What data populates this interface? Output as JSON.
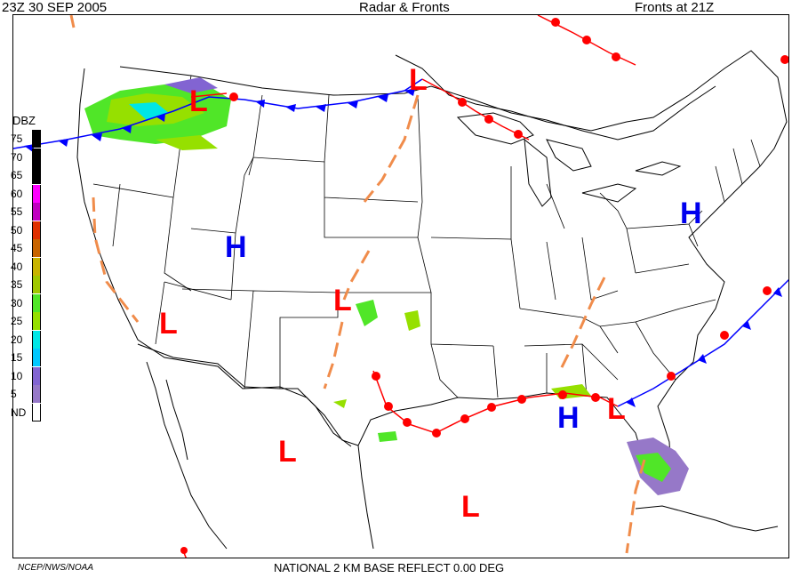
{
  "header": {
    "left": "23Z  30 SEP  2005",
    "center": "Radar & Fronts",
    "right": "Fronts at 21Z"
  },
  "legend": {
    "title": "DBZ",
    "items": [
      {
        "label": "75",
        "color": "#000000"
      },
      {
        "label": "70",
        "color": "#000000"
      },
      {
        "label": "65",
        "color": "#000000"
      },
      {
        "label": "60",
        "color": "#ff00ff"
      },
      {
        "label": "55",
        "color": "#c000c0"
      },
      {
        "label": "50",
        "color": "#e03000"
      },
      {
        "label": "45",
        "color": "#c86400"
      },
      {
        "label": "40",
        "color": "#c8b400"
      },
      {
        "label": "35",
        "color": "#a0c800"
      },
      {
        "label": "30",
        "color": "#50e628"
      },
      {
        "label": "25",
        "color": "#96e000"
      },
      {
        "label": "20",
        "color": "#00e6e6"
      },
      {
        "label": "15",
        "color": "#00c8ff"
      },
      {
        "label": "10",
        "color": "#8264d2"
      },
      {
        "label": "5",
        "color": "#9678c8"
      },
      {
        "label": "ND",
        "color": "#ffffff"
      }
    ]
  },
  "pressure_centers": [
    {
      "type": "L",
      "label": "L"
    },
    {
      "type": "L",
      "label": "L"
    },
    {
      "type": "L",
      "label": "L"
    },
    {
      "type": "L",
      "label": "L"
    },
    {
      "type": "L",
      "label": "L"
    },
    {
      "type": "L",
      "label": "L"
    },
    {
      "type": "L",
      "label": "L"
    },
    {
      "type": "H",
      "label": "H"
    },
    {
      "type": "H",
      "label": "H"
    },
    {
      "type": "H",
      "label": "H"
    }
  ],
  "colors": {
    "warm_front": "#ff0000",
    "cold_front": "#0000ff",
    "trough": "#f08c4b",
    "boundaries": "#000000"
  },
  "footer": {
    "left": "NCEP/NWS/NOAA",
    "center": "NATIONAL 2 KM BASE REFLECT 0.00 DEG"
  }
}
